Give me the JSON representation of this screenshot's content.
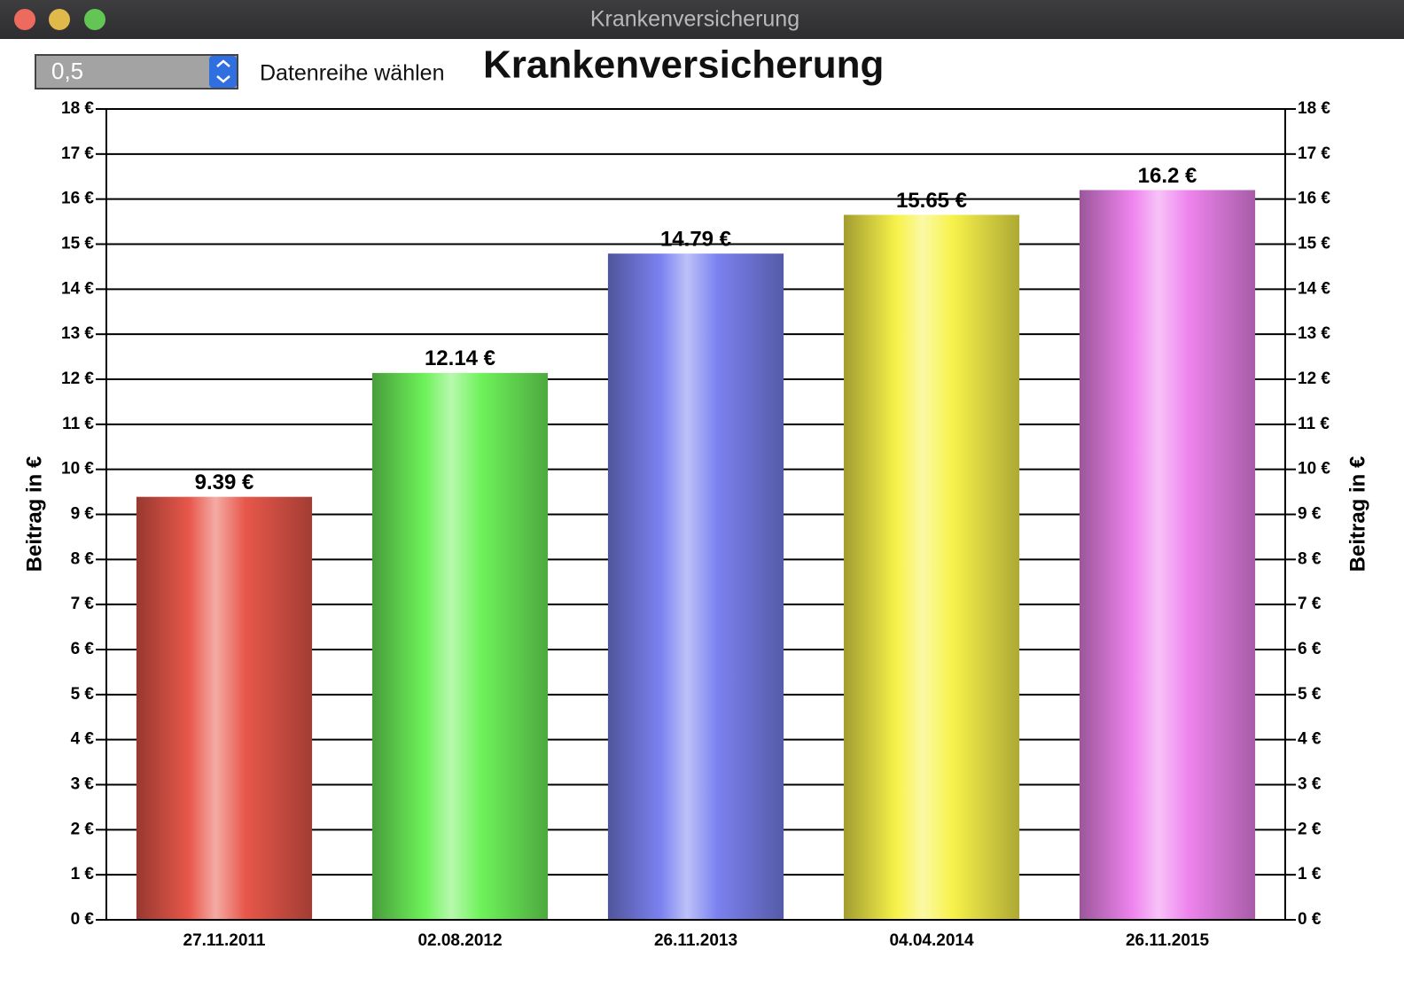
{
  "window": {
    "title": "Krankenversicherung"
  },
  "controls": {
    "spinner_value": "0,5",
    "spinner_label": "Datenreihe wählen"
  },
  "chart_data": {
    "type": "bar",
    "title": "Krankenversicherung",
    "ylabel": "Beitrag in €",
    "categories": [
      "27.11.2011",
      "02.08.2012",
      "26.11.2013",
      "04.04.2014",
      "26.11.2015"
    ],
    "values": [
      9.39,
      12.14,
      14.79,
      15.65,
      16.2
    ],
    "value_labels": [
      "9.39 €",
      "12.14 €",
      "14.79 €",
      "15.65 €",
      "16.2 €"
    ],
    "colors": [
      "#e8574a",
      "#6ef25a",
      "#7b82f0",
      "#f7f24a",
      "#ee84ee"
    ],
    "ylim": [
      0,
      18
    ],
    "yticks": [
      {
        "value": 0,
        "label": "0 €"
      },
      {
        "value": 1,
        "label": "1 €"
      },
      {
        "value": 2,
        "label": "2 €"
      },
      {
        "value": 3,
        "label": "3 €"
      },
      {
        "value": 4,
        "label": "4 €"
      },
      {
        "value": 5,
        "label": "5 €"
      },
      {
        "value": 6,
        "label": "6 €"
      },
      {
        "value": 7,
        "label": "7 €"
      },
      {
        "value": 8,
        "label": "8 €"
      },
      {
        "value": 9,
        "label": "9 €"
      },
      {
        "value": 10,
        "label": "10 €"
      },
      {
        "value": 11,
        "label": "11 €"
      },
      {
        "value": 12,
        "label": "12 €"
      },
      {
        "value": 13,
        "label": "13 €"
      },
      {
        "value": 14,
        "label": "14 €"
      },
      {
        "value": 15,
        "label": "15 €"
      },
      {
        "value": 16,
        "label": "16 €"
      },
      {
        "value": 17,
        "label": "17 €"
      },
      {
        "value": 18,
        "label": "18 €"
      }
    ],
    "grid": true,
    "right_axis": true
  }
}
